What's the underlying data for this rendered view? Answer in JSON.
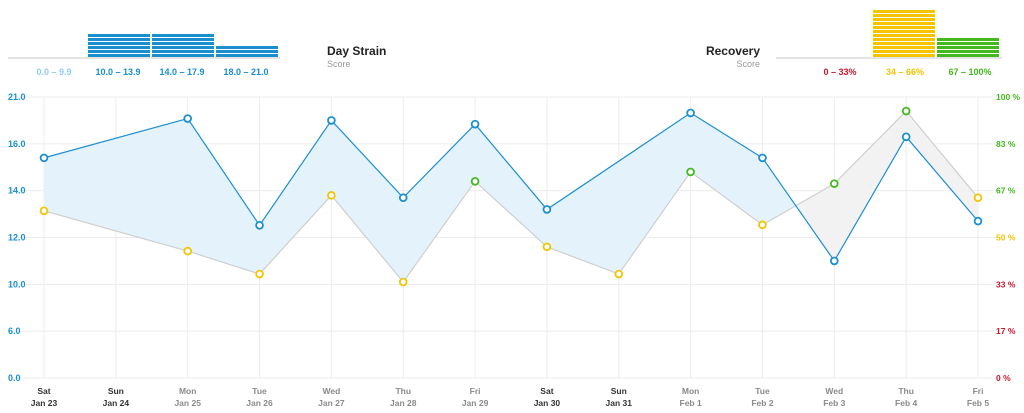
{
  "legend": {
    "strain": {
      "title": "Day Strain",
      "subtitle": "Score",
      "ranges": [
        {
          "label": "0.0 – 9.9",
          "color": "#8fcdf0",
          "bar_level": 0
        },
        {
          "label": "10.0 – 13.9",
          "color": "#1a8fd0",
          "bar_level": 0.9
        },
        {
          "label": "14.0 – 17.9",
          "color": "#1a8fd0",
          "bar_level": 0.9
        },
        {
          "label": "18.0 – 21.0",
          "color": "#1a8fd0",
          "bar_level": 0.4
        }
      ]
    },
    "recovery": {
      "title": "Recovery",
      "subtitle": "Score",
      "ranges": [
        {
          "label": "0 – 33%",
          "color": "#d0142c",
          "bar_level": 0
        },
        {
          "label": "34 – 66%",
          "color": "#f2c500",
          "bar_level": 1.0
        },
        {
          "label": "67 – 100%",
          "color": "#44b81c",
          "bar_level": 0.45
        }
      ]
    }
  },
  "chart_data": {
    "type": "line",
    "categories": [
      {
        "day": "Sat",
        "date": "Jan 23"
      },
      {
        "day": "Sun",
        "date": "Jan 24"
      },
      {
        "day": "Mon",
        "date": "Jan 25"
      },
      {
        "day": "Tue",
        "date": "Jan 26"
      },
      {
        "day": "Wed",
        "date": "Jan 27"
      },
      {
        "day": "Thu",
        "date": "Jan 28"
      },
      {
        "day": "Fri",
        "date": "Jan 29"
      },
      {
        "day": "Sat",
        "date": "Jan 30"
      },
      {
        "day": "Sun",
        "date": "Jan 31"
      },
      {
        "day": "Mon",
        "date": "Feb 1"
      },
      {
        "day": "Tue",
        "date": "Feb 2"
      },
      {
        "day": "Wed",
        "date": "Feb 3"
      },
      {
        "day": "Thu",
        "date": "Feb 4"
      },
      {
        "day": "Fri",
        "date": "Feb 5"
      }
    ],
    "y_left": {
      "ticks": [
        "0.0",
        "6.0",
        "10.0",
        "12.0",
        "14.0",
        "16.0",
        "21.0"
      ],
      "color": "#1a8fd0"
    },
    "y_right": {
      "ticks": [
        {
          "label": "0 %",
          "color": "#d0142c"
        },
        {
          "label": "17 %",
          "color": "#d0142c"
        },
        {
          "label": "33 %",
          "color": "#d0142c"
        },
        {
          "label": "50 %",
          "color": "#f2c500"
        },
        {
          "label": "67 %",
          "color": "#44b81c"
        },
        {
          "label": "83 %",
          "color": "#44b81c"
        },
        {
          "label": "100 %",
          "color": "#44b81c"
        }
      ]
    },
    "series": [
      {
        "key": "strain",
        "color": "#1a8fd0",
        "levels": [
          4.7,
          null,
          5.54,
          3.26,
          5.5,
          3.85,
          5.42,
          3.6,
          null,
          5.66,
          4.7,
          2.5,
          5.15,
          3.35
        ]
      },
      {
        "key": "recovery",
        "levels": [
          3.57,
          null,
          2.71,
          2.22,
          3.9,
          2.05,
          4.2,
          2.8,
          2.22,
          4.4,
          3.27,
          4.15,
          5.7,
          3.85
        ],
        "point_colors": [
          "#f2c500",
          null,
          "#f2c500",
          "#f2c500",
          "#f2c500",
          "#f2c500",
          "#44b81c",
          "#f2c500",
          "#f2c500",
          "#44b81c",
          "#f2c500",
          "#44b81c",
          "#44b81c",
          "#f2c500"
        ]
      }
    ]
  }
}
